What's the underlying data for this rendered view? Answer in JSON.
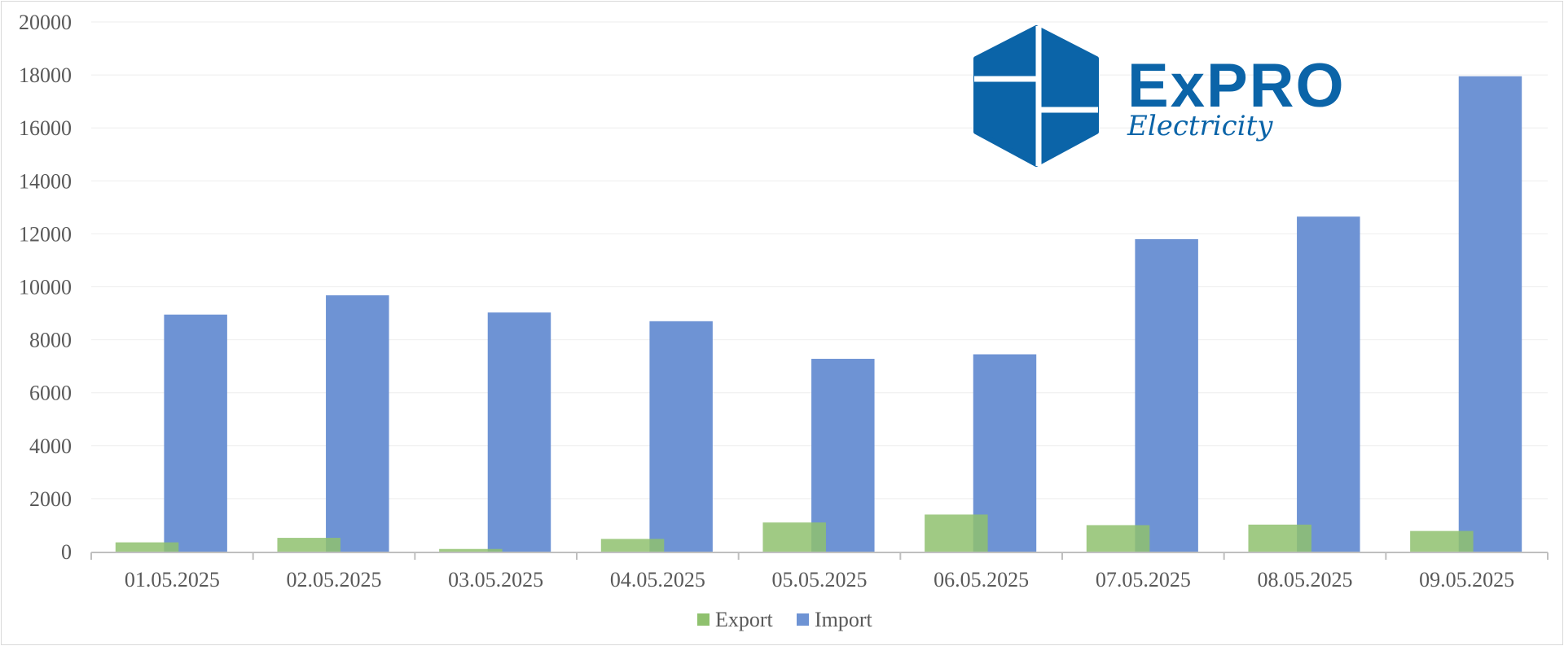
{
  "chart_data": {
    "type": "bar",
    "categories": [
      "01.05.2025",
      "02.05.2025",
      "03.05.2025",
      "04.05.2025",
      "05.05.2025",
      "06.05.2025",
      "07.05.2025",
      "08.05.2025",
      "09.05.2025"
    ],
    "series": [
      {
        "name": "Export",
        "color": "#8fc16e",
        "values": [
          350,
          520,
          100,
          480,
          1100,
          1400,
          1000,
          1020,
          780
        ]
      },
      {
        "name": "Import",
        "color": "#6e93d4",
        "values": [
          8950,
          9680,
          9030,
          8700,
          7280,
          7450,
          11800,
          12650,
          17950
        ]
      }
    ],
    "yticks": [
      "0",
      "2000",
      "4000",
      "6000",
      "8000",
      "10000",
      "12000",
      "14000",
      "16000",
      "18000",
      "20000"
    ],
    "ylim": [
      0,
      20000
    ],
    "grid": true,
    "legend_position": "bottom"
  },
  "logo": {
    "word": "ExPRO",
    "sub": "Electricity",
    "color": "#0b64a8"
  }
}
